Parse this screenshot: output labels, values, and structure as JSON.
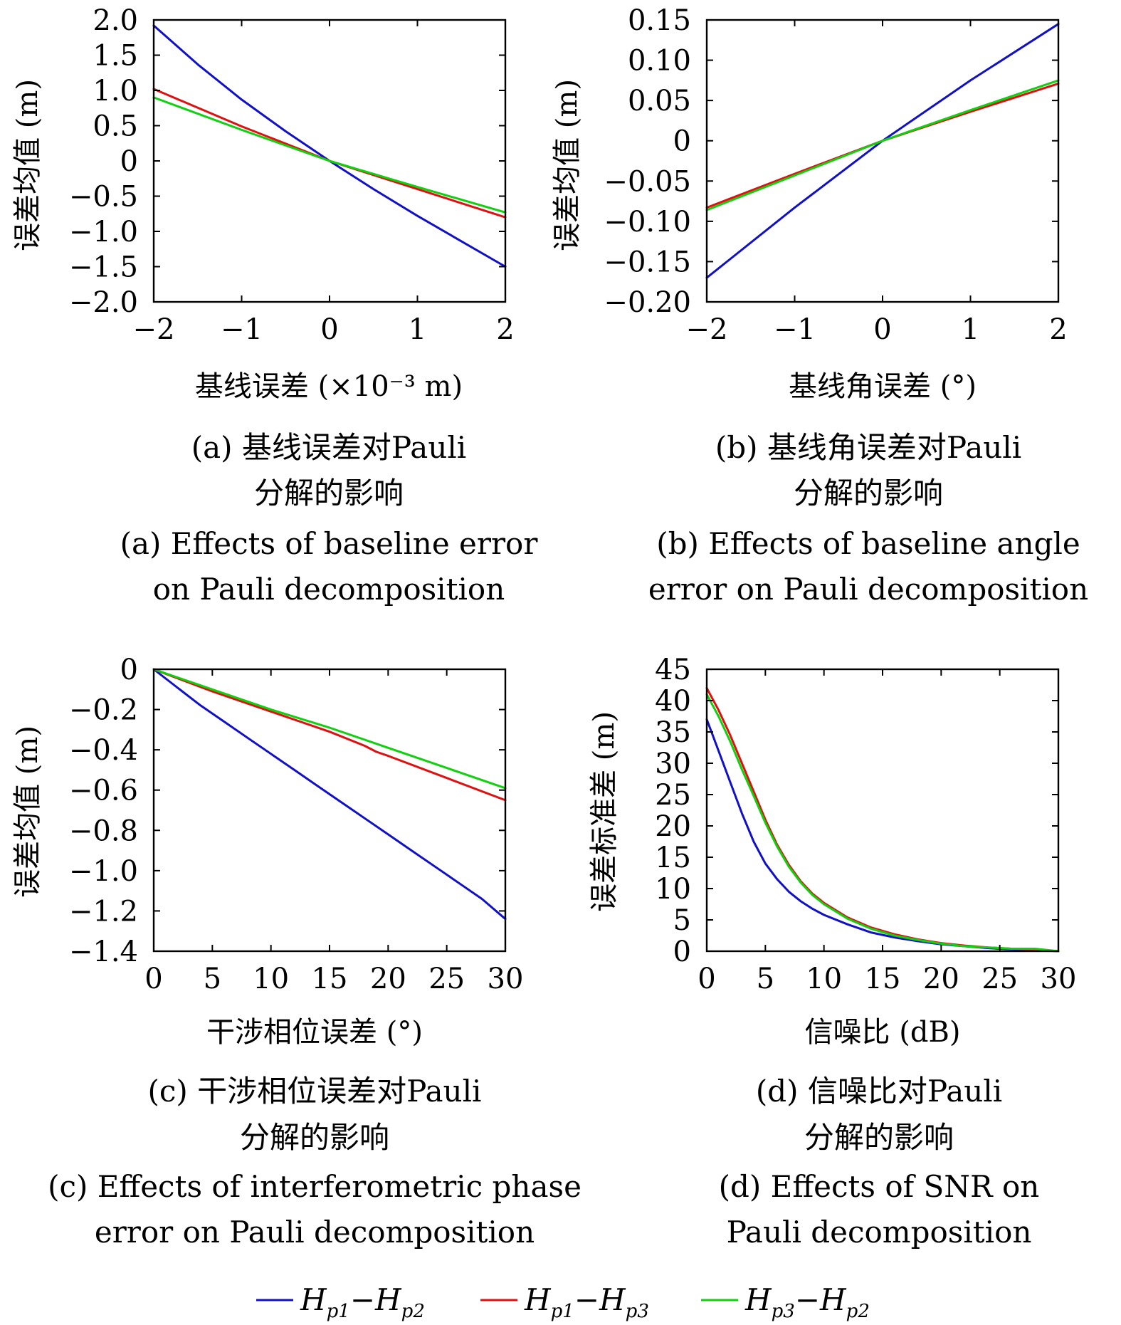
{
  "legend": {
    "items": [
      {
        "label": "Hp1−Hp2",
        "main1": "H",
        "sub1": "p1",
        "dash": "−",
        "main2": "H",
        "sub2": "p2",
        "color": "#1010c8"
      },
      {
        "label": "Hp1−Hp3",
        "main1": "H",
        "sub1": "p1",
        "dash": "−",
        "main2": "H",
        "sub2": "p3",
        "color": "#e01010"
      },
      {
        "label": "Hp3−Hp2",
        "main1": "H",
        "sub1": "p3",
        "dash": "−",
        "main2": "H",
        "sub2": "p2",
        "color": "#10d010"
      }
    ]
  },
  "chart_data": [
    {
      "type": "line",
      "panel": "a",
      "xlabel": "基线误差 (×10⁻³ m)",
      "ylabel": "误差均值 (m)",
      "xlim": [
        -2,
        2
      ],
      "ylim": [
        -2.0,
        2.0
      ],
      "xticks": [
        -2,
        -1,
        0,
        1,
        2
      ],
      "xtick_labels": [
        "−2",
        "−1",
        "0",
        "1",
        "2"
      ],
      "yticks": [
        2.0,
        1.5,
        1.0,
        0.5,
        0,
        -0.5,
        -1.0,
        -1.5,
        -2.0
      ],
      "ytick_labels": [
        "2.0",
        "1.5",
        "1.0",
        "0.5",
        "0",
        "−0.5",
        "−1.0",
        "−1.5",
        "−2.0"
      ],
      "caption_zh": [
        "(a) 基线误差对Pauli",
        "分解的影响"
      ],
      "caption_en": [
        "(a) Effects of baseline error",
        "on Pauli decomposition"
      ],
      "series": [
        {
          "color": "#1010c8",
          "x": [
            -2,
            -1.5,
            -1,
            -0.5,
            0,
            0.5,
            1,
            1.5,
            2
          ],
          "y": [
            1.92,
            1.37,
            0.87,
            0.42,
            0,
            -0.4,
            -0.78,
            -1.14,
            -1.5
          ]
        },
        {
          "color": "#e01010",
          "x": [
            -2,
            -1,
            0,
            1,
            2
          ],
          "y": [
            1.02,
            0.49,
            0,
            -0.4,
            -0.8
          ]
        },
        {
          "color": "#10d010",
          "x": [
            -2,
            -1,
            0,
            1,
            2
          ],
          "y": [
            0.9,
            0.44,
            0,
            -0.37,
            -0.73
          ]
        }
      ]
    },
    {
      "type": "line",
      "panel": "b",
      "xlabel": "基线角误差 (°)",
      "ylabel": "误差均值 (m)",
      "xlim": [
        -2,
        2
      ],
      "ylim": [
        -0.2,
        0.15
      ],
      "xticks": [
        -2,
        -1,
        0,
        1,
        2
      ],
      "xtick_labels": [
        "−2",
        "−1",
        "0",
        "1",
        "2"
      ],
      "yticks": [
        0.15,
        0.1,
        0.05,
        0,
        -0.05,
        -0.1,
        -0.15,
        -0.2
      ],
      "ytick_labels": [
        "0.15",
        "0.10",
        "0.05",
        "0",
        "−0.05",
        "−0.10",
        "−0.15",
        "−0.20"
      ],
      "caption_zh": [
        "(b) 基线角误差对Pauli",
        "分解的影响"
      ],
      "caption_en": [
        "(b) Effects of baseline angle",
        "error on Pauli decomposition"
      ],
      "series": [
        {
          "color": "#1010c8",
          "x": [
            -2,
            -1,
            0,
            1,
            2
          ],
          "y": [
            -0.17,
            -0.083,
            0,
            0.075,
            0.145
          ]
        },
        {
          "color": "#e01010",
          "x": [
            -2,
            -1,
            0,
            1,
            2
          ],
          "y": [
            -0.083,
            -0.041,
            0,
            0.036,
            0.071
          ]
        },
        {
          "color": "#10d010",
          "x": [
            -2,
            -1,
            0,
            1,
            2
          ],
          "y": [
            -0.086,
            -0.043,
            0,
            0.038,
            0.075
          ]
        }
      ]
    },
    {
      "type": "line",
      "panel": "c",
      "xlabel": "干涉相位误差 (°)",
      "ylabel": "误差均值 (m)",
      "xlim": [
        0,
        30
      ],
      "ylim": [
        -1.4,
        0
      ],
      "xticks": [
        0,
        5,
        10,
        15,
        20,
        25,
        30
      ],
      "xtick_labels": [
        "0",
        "5",
        "10",
        "15",
        "20",
        "25",
        "30"
      ],
      "yticks": [
        0,
        -0.2,
        -0.4,
        -0.6,
        -0.8,
        -1.0,
        -1.2,
        -1.4
      ],
      "ytick_labels": [
        "0",
        "−0.2",
        "−0.4",
        "−0.6",
        "−0.8",
        "−1.0",
        "−1.2",
        "−1.4"
      ],
      "caption_zh": [
        "(c) 干涉相位误差对Pauli",
        "分解的影响"
      ],
      "caption_en": [
        "(c) Effects of interferometric phase",
        "error on Pauli decomposition"
      ],
      "series": [
        {
          "color": "#1010c8",
          "x": [
            0,
            2,
            4,
            6,
            8,
            10,
            12,
            14,
            16,
            18,
            20,
            22,
            24,
            26,
            28,
            30
          ],
          "y": [
            0,
            -0.09,
            -0.18,
            -0.26,
            -0.34,
            -0.42,
            -0.5,
            -0.58,
            -0.66,
            -0.74,
            -0.82,
            -0.9,
            -0.98,
            -1.06,
            -1.14,
            -1.24
          ]
        },
        {
          "color": "#e01010",
          "x": [
            0,
            5,
            10,
            15,
            18,
            19,
            20,
            25,
            30
          ],
          "y": [
            0,
            -0.11,
            -0.21,
            -0.31,
            -0.38,
            -0.41,
            -0.43,
            -0.54,
            -0.65
          ]
        },
        {
          "color": "#10d010",
          "x": [
            0,
            5,
            10,
            15,
            20,
            25,
            30
          ],
          "y": [
            0,
            -0.1,
            -0.2,
            -0.29,
            -0.39,
            -0.49,
            -0.59
          ]
        }
      ]
    },
    {
      "type": "line",
      "panel": "d",
      "xlabel": "信噪比 (dB)",
      "ylabel": "误差标准差 (m)",
      "xlim": [
        0,
        30
      ],
      "ylim": [
        0,
        45
      ],
      "xticks": [
        0,
        5,
        10,
        15,
        20,
        25,
        30
      ],
      "xtick_labels": [
        "0",
        "5",
        "10",
        "15",
        "20",
        "25",
        "30"
      ],
      "yticks": [
        45,
        40,
        35,
        30,
        25,
        20,
        15,
        10,
        5,
        0
      ],
      "ytick_labels": [
        "45",
        "40",
        "35",
        "30",
        "25",
        "20",
        "15",
        "10",
        "5",
        "0"
      ],
      "caption_zh": [
        "(d) 信噪比对Pauli",
        "分解的影响"
      ],
      "caption_en": [
        "(d) Effects of SNR on",
        "Pauli decomposition"
      ],
      "series": [
        {
          "color": "#1010c8",
          "x": [
            0,
            1,
            2,
            3,
            4,
            5,
            6,
            7,
            8,
            9,
            10,
            12,
            14,
            16,
            18,
            20,
            22,
            24,
            26,
            28,
            30
          ],
          "y": [
            37,
            32,
            27,
            22,
            17.5,
            14,
            11.5,
            9.5,
            8,
            6.8,
            5.8,
            4.3,
            3.0,
            2.2,
            1.6,
            1.1,
            0.8,
            0.5,
            0.3,
            0.2,
            0
          ]
        },
        {
          "color": "#e01010",
          "x": [
            0,
            1,
            2,
            3,
            4,
            5,
            6,
            7,
            8,
            9,
            10,
            12,
            14,
            16,
            18,
            20,
            22,
            24,
            26,
            28,
            30
          ],
          "y": [
            42,
            38.5,
            34.5,
            30,
            25.5,
            21,
            17,
            13.8,
            11.2,
            9.2,
            7.7,
            5.4,
            3.8,
            2.7,
            1.9,
            1.3,
            0.9,
            0.6,
            0.4,
            0.3,
            0
          ]
        },
        {
          "color": "#10d010",
          "x": [
            0,
            1,
            2,
            3,
            4,
            5,
            6,
            7,
            8,
            9,
            10,
            12,
            14,
            16,
            18,
            20,
            22,
            24,
            26,
            28,
            30
          ],
          "y": [
            41,
            37.5,
            33.5,
            29,
            24.8,
            20.5,
            16.7,
            13.5,
            11,
            9,
            7.5,
            5.2,
            3.6,
            2.5,
            1.8,
            1.2,
            0.8,
            0.6,
            0.4,
            0.4,
            0
          ]
        }
      ]
    }
  ]
}
